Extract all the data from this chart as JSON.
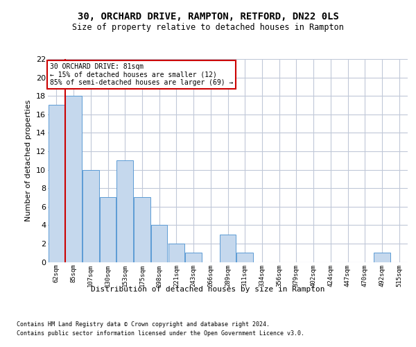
{
  "title1": "30, ORCHARD DRIVE, RAMPTON, RETFORD, DN22 0LS",
  "title2": "Size of property relative to detached houses in Rampton",
  "xlabel": "Distribution of detached houses by size in Rampton",
  "ylabel": "Number of detached properties",
  "footnote1": "Contains HM Land Registry data © Crown copyright and database right 2024.",
  "footnote2": "Contains public sector information licensed under the Open Government Licence v3.0.",
  "annotation_line1": "30 ORCHARD DRIVE: 81sqm",
  "annotation_line2": "← 15% of detached houses are smaller (12)",
  "annotation_line3": "85% of semi-detached houses are larger (69) →",
  "bar_color": "#c5d8ed",
  "bar_edge_color": "#5b9bd5",
  "marker_line_color": "#cc0000",
  "background_color": "#ffffff",
  "grid_color": "#c0c8d8",
  "categories": [
    "62sqm",
    "85sqm",
    "107sqm",
    "130sqm",
    "153sqm",
    "175sqm",
    "198sqm",
    "221sqm",
    "243sqm",
    "266sqm",
    "289sqm",
    "311sqm",
    "334sqm",
    "356sqm",
    "379sqm",
    "402sqm",
    "424sqm",
    "447sqm",
    "470sqm",
    "492sqm",
    "515sqm"
  ],
  "values": [
    17,
    18,
    10,
    7,
    11,
    7,
    4,
    2,
    1,
    0,
    3,
    1,
    0,
    0,
    0,
    0,
    0,
    0,
    0,
    1,
    0
  ],
  "marker_index": 1,
  "ylim": [
    0,
    22
  ],
  "yticks": [
    0,
    2,
    4,
    6,
    8,
    10,
    12,
    14,
    16,
    18,
    20,
    22
  ]
}
